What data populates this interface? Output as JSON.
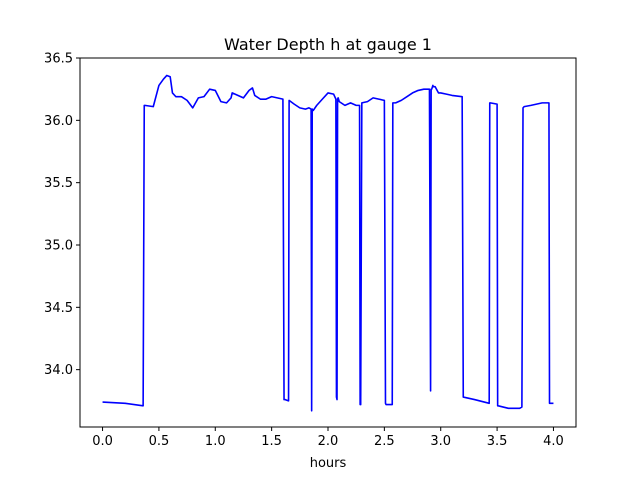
{
  "chart_data": {
    "type": "line",
    "title": "Water Depth h at gauge 1",
    "xlabel": "hours",
    "ylabel": "",
    "xlim": [
      -0.2,
      4.2
    ],
    "ylim": [
      33.54,
      36.5
    ],
    "x_ticks": [
      0.0,
      0.5,
      1.0,
      1.5,
      2.0,
      2.5,
      3.0,
      3.5,
      4.0
    ],
    "x_tick_labels": [
      "0.0",
      "0.5",
      "1.0",
      "1.5",
      "2.0",
      "2.5",
      "3.0",
      "3.5",
      "4.0"
    ],
    "y_ticks": [
      34.0,
      34.5,
      35.0,
      35.5,
      36.0,
      36.5
    ],
    "y_tick_labels": [
      "34.0",
      "34.5",
      "35.0",
      "35.5",
      "36.0",
      "36.5"
    ],
    "grid": false,
    "legend": "none",
    "series": [
      {
        "color": "#0000ff",
        "x": [
          0.0,
          0.2,
          0.36,
          0.37,
          0.375,
          0.45,
          0.5,
          0.54,
          0.57,
          0.6,
          0.62,
          0.65,
          0.7,
          0.75,
          0.8,
          0.85,
          0.9,
          0.95,
          1.0,
          1.05,
          1.1,
          1.14,
          1.15,
          1.2,
          1.25,
          1.3,
          1.33,
          1.35,
          1.4,
          1.45,
          1.5,
          1.55,
          1.6,
          1.61,
          1.62,
          1.65,
          1.655,
          1.7,
          1.75,
          1.8,
          1.83,
          1.85,
          1.855,
          1.86,
          1.87,
          1.9,
          1.95,
          2.0,
          2.05,
          2.07,
          2.075,
          2.08,
          2.085,
          2.09,
          2.1,
          2.15,
          2.2,
          2.25,
          2.28,
          2.285,
          2.29,
          2.3,
          2.35,
          2.4,
          2.45,
          2.5,
          2.51,
          2.515,
          2.52,
          2.57,
          2.575,
          2.6,
          2.65,
          2.7,
          2.75,
          2.8,
          2.85,
          2.9,
          2.91,
          2.915,
          2.92,
          2.93,
          2.935,
          2.95,
          2.98,
          3.0,
          3.05,
          3.1,
          3.19,
          3.2,
          3.3,
          3.43,
          3.435,
          3.44,
          3.5,
          3.505,
          3.51,
          3.6,
          3.7,
          3.72,
          3.73,
          3.74,
          3.8,
          3.85,
          3.9,
          3.95,
          3.96,
          3.965,
          3.97,
          4.0
        ],
        "y": [
          33.74,
          33.73,
          33.71,
          36.12,
          36.12,
          36.11,
          36.28,
          36.33,
          36.36,
          36.35,
          36.22,
          36.19,
          36.19,
          36.16,
          36.1,
          36.18,
          36.19,
          36.25,
          36.24,
          36.15,
          36.14,
          36.18,
          36.22,
          36.2,
          36.18,
          36.24,
          36.26,
          36.2,
          36.17,
          36.17,
          36.19,
          36.18,
          36.17,
          33.76,
          33.76,
          33.75,
          36.16,
          36.13,
          36.1,
          36.09,
          36.1,
          36.09,
          33.67,
          36.09,
          36.08,
          36.12,
          36.17,
          36.22,
          36.21,
          36.17,
          33.78,
          33.76,
          36.17,
          36.18,
          36.15,
          36.12,
          36.14,
          36.12,
          36.12,
          33.72,
          33.72,
          36.14,
          36.15,
          36.18,
          36.17,
          36.16,
          33.73,
          33.72,
          33.72,
          33.72,
          36.14,
          36.14,
          36.16,
          36.19,
          36.22,
          36.24,
          36.25,
          36.25,
          33.83,
          36.25,
          36.25,
          36.28,
          36.27,
          36.27,
          36.22,
          36.22,
          36.21,
          36.2,
          36.19,
          33.78,
          33.76,
          33.73,
          36.14,
          36.14,
          36.13,
          33.71,
          33.71,
          33.69,
          33.69,
          33.7,
          36.1,
          36.11,
          36.12,
          36.13,
          36.14,
          36.14,
          36.14,
          33.73,
          33.73,
          33.73
        ]
      }
    ]
  }
}
